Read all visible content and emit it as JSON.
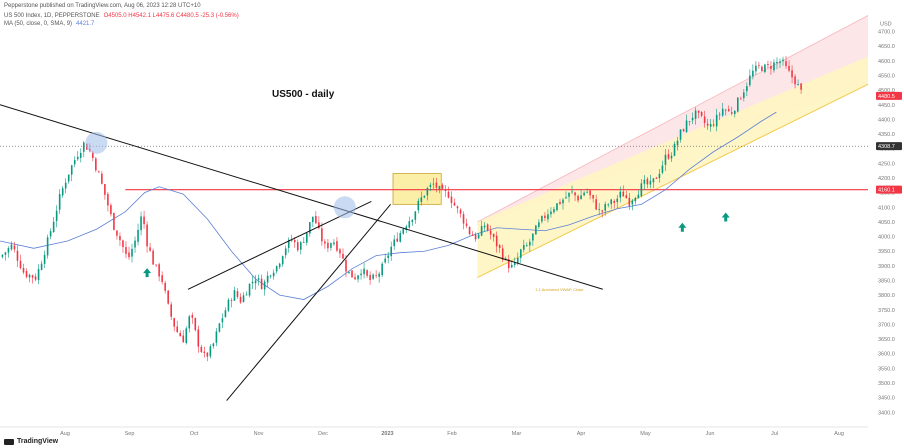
{
  "header": {
    "published": "Pepperstone published on TradingView.com, Aug 06, 2023 12:28 UTC+10",
    "symbol": "US 500 Index, 1D, PEPPERSTONE",
    "ohlc": "O4505.0 H4542.1 L4475.6 C4480.5 -25.3 (-0.56%)",
    "ma_label": "MA (50, close, 0, SMA, 9)",
    "ma_value": "4421.7"
  },
  "branding": {
    "logo_text": "TradingView"
  },
  "colors": {
    "up": "#089981",
    "down": "#f23645",
    "ma": "#5b7fd6",
    "resistance": "#f23645",
    "channel_upper_fill": "#fde0e2",
    "channel_lower_fill": "#fff5c2",
    "box_fill": "#fbefa8",
    "arrow": "#089981",
    "circle": "#9fbbe8",
    "dotted": "#555555"
  },
  "chart_data": {
    "type": "candlestick",
    "title": "US500 - daily",
    "y_unit": "USD",
    "ylim": [
      3360,
      4760
    ],
    "y_ticks": [
      3400,
      3450,
      3500,
      3550,
      3600,
      3650,
      3700,
      3750,
      3800,
      3850,
      3900,
      3950,
      4000,
      4050,
      4100,
      4150,
      4200,
      4250,
      4300,
      4350,
      4400,
      4450,
      4500,
      4550,
      4600,
      4650,
      4700
    ],
    "x_ticks": [
      "Aug",
      "Sep",
      "Oct",
      "Nov",
      "Dec",
      "2023",
      "Feb",
      "Mar",
      "Apr",
      "May",
      "Jun",
      "Jul",
      "Aug"
    ],
    "price_labels": [
      {
        "text": "USD",
        "value": 4728
      },
      {
        "text": "4480.5",
        "value": 4480.5,
        "color": "#f23645"
      },
      {
        "text": "4308.7",
        "value": 4308.7,
        "color": "#333333"
      },
      {
        "text": "4160.1",
        "value": 4160.1,
        "color": "#f23645"
      }
    ],
    "annotation_text": "1.1 Anchored VWAP, Close",
    "horizontal_levels": {
      "resistance": 4160.1,
      "dotted_high": 4308.7
    },
    "ma_series": [
      {
        "d": 0,
        "v": 3985
      },
      {
        "d": 14,
        "v": 3960
      },
      {
        "d": 28,
        "v": 3985
      },
      {
        "d": 40,
        "v": 4025
      },
      {
        "d": 52,
        "v": 4085
      },
      {
        "d": 60,
        "v": 4150
      },
      {
        "d": 66,
        "v": 4170
      },
      {
        "d": 76,
        "v": 4145
      },
      {
        "d": 86,
        "v": 4060
      },
      {
        "d": 96,
        "v": 3950
      },
      {
        "d": 106,
        "v": 3855
      },
      {
        "d": 116,
        "v": 3800
      },
      {
        "d": 126,
        "v": 3785
      },
      {
        "d": 136,
        "v": 3830
      },
      {
        "d": 146,
        "v": 3890
      },
      {
        "d": 156,
        "v": 3935
      },
      {
        "d": 166,
        "v": 3945
      },
      {
        "d": 176,
        "v": 3950
      },
      {
        "d": 186,
        "v": 3970
      },
      {
        "d": 196,
        "v": 4005
      },
      {
        "d": 206,
        "v": 4030
      },
      {
        "d": 216,
        "v": 4025
      },
      {
        "d": 226,
        "v": 4020
      },
      {
        "d": 236,
        "v": 4040
      },
      {
        "d": 246,
        "v": 4070
      },
      {
        "d": 256,
        "v": 4095
      },
      {
        "d": 266,
        "v": 4110
      },
      {
        "d": 276,
        "v": 4160
      },
      {
        "d": 286,
        "v": 4230
      },
      {
        "d": 296,
        "v": 4290
      },
      {
        "d": 306,
        "v": 4340
      },
      {
        "d": 316,
        "v": 4395
      },
      {
        "d": 322,
        "v": 4425
      }
    ],
    "close_path": [
      {
        "d": 0,
        "c": 3930
      },
      {
        "d": 5,
        "c": 3970
      },
      {
        "d": 10,
        "c": 3875
      },
      {
        "d": 15,
        "c": 3860
      },
      {
        "d": 20,
        "c": 3990
      },
      {
        "d": 25,
        "c": 4140
      },
      {
        "d": 28,
        "c": 4210
      },
      {
        "d": 32,
        "c": 4280
      },
      {
        "d": 35,
        "c": 4320
      },
      {
        "d": 38,
        "c": 4280
      },
      {
        "d": 41,
        "c": 4210
      },
      {
        "d": 44,
        "c": 4130
      },
      {
        "d": 47,
        "c": 4040
      },
      {
        "d": 50,
        "c": 3985
      },
      {
        "d": 53,
        "c": 3920
      },
      {
        "d": 56,
        "c": 3985
      },
      {
        "d": 59,
        "c": 4080
      },
      {
        "d": 61,
        "c": 3980
      },
      {
        "d": 64,
        "c": 3900
      },
      {
        "d": 67,
        "c": 3860
      },
      {
        "d": 70,
        "c": 3750
      },
      {
        "d": 73,
        "c": 3680
      },
      {
        "d": 76,
        "c": 3650
      },
      {
        "d": 79,
        "c": 3735
      },
      {
        "d": 82,
        "c": 3640
      },
      {
        "d": 85,
        "c": 3585
      },
      {
        "d": 88,
        "c": 3620
      },
      {
        "d": 91,
        "c": 3700
      },
      {
        "d": 94,
        "c": 3760
      },
      {
        "d": 97,
        "c": 3810
      },
      {
        "d": 100,
        "c": 3780
      },
      {
        "d": 103,
        "c": 3830
      },
      {
        "d": 106,
        "c": 3860
      },
      {
        "d": 109,
        "c": 3830
      },
      {
        "d": 112,
        "c": 3880
      },
      {
        "d": 115,
        "c": 3900
      },
      {
        "d": 118,
        "c": 3960
      },
      {
        "d": 121,
        "c": 3990
      },
      {
        "d": 124,
        "c": 3960
      },
      {
        "d": 127,
        "c": 4010
      },
      {
        "d": 130,
        "c": 4075
      },
      {
        "d": 132,
        "c": 4020
      },
      {
        "d": 135,
        "c": 3960
      },
      {
        "d": 138,
        "c": 3990
      },
      {
        "d": 141,
        "c": 3950
      },
      {
        "d": 144,
        "c": 3880
      },
      {
        "d": 147,
        "c": 3860
      },
      {
        "d": 150,
        "c": 3890
      },
      {
        "d": 153,
        "c": 3850
      },
      {
        "d": 156,
        "c": 3860
      },
      {
        "d": 159,
        "c": 3900
      },
      {
        "d": 162,
        "c": 3960
      },
      {
        "d": 165,
        "c": 4000
      },
      {
        "d": 168,
        "c": 4040
      },
      {
        "d": 171,
        "c": 4070
      },
      {
        "d": 174,
        "c": 4120
      },
      {
        "d": 177,
        "c": 4160
      },
      {
        "d": 180,
        "c": 4180
      },
      {
        "d": 183,
        "c": 4150
      },
      {
        "d": 186,
        "c": 4145
      },
      {
        "d": 189,
        "c": 4100
      },
      {
        "d": 192,
        "c": 4060
      },
      {
        "d": 195,
        "c": 4010
      },
      {
        "d": 198,
        "c": 3995
      },
      {
        "d": 201,
        "c": 4040
      },
      {
        "d": 204,
        "c": 4000
      },
      {
        "d": 207,
        "c": 3960
      },
      {
        "d": 210,
        "c": 3910
      },
      {
        "d": 213,
        "c": 3890
      },
      {
        "d": 216,
        "c": 3950
      },
      {
        "d": 219,
        "c": 3970
      },
      {
        "d": 222,
        "c": 4020
      },
      {
        "d": 225,
        "c": 4060
      },
      {
        "d": 228,
        "c": 4090
      },
      {
        "d": 231,
        "c": 4110
      },
      {
        "d": 234,
        "c": 4130
      },
      {
        "d": 237,
        "c": 4150
      },
      {
        "d": 240,
        "c": 4130
      },
      {
        "d": 243,
        "c": 4160
      },
      {
        "d": 246,
        "c": 4120
      },
      {
        "d": 249,
        "c": 4080
      },
      {
        "d": 252,
        "c": 4110
      },
      {
        "d": 255,
        "c": 4120
      },
      {
        "d": 258,
        "c": 4150
      },
      {
        "d": 261,
        "c": 4120
      },
      {
        "d": 264,
        "c": 4150
      },
      {
        "d": 267,
        "c": 4180
      },
      {
        "d": 270,
        "c": 4175
      },
      {
        "d": 273,
        "c": 4215
      },
      {
        "d": 276,
        "c": 4270
      },
      {
        "d": 279,
        "c": 4290
      },
      {
        "d": 282,
        "c": 4350
      },
      {
        "d": 285,
        "c": 4390
      },
      {
        "d": 288,
        "c": 4420
      },
      {
        "d": 291,
        "c": 4400
      },
      {
        "d": 294,
        "c": 4370
      },
      {
        "d": 297,
        "c": 4400
      },
      {
        "d": 300,
        "c": 4440
      },
      {
        "d": 303,
        "c": 4420
      },
      {
        "d": 306,
        "c": 4460
      },
      {
        "d": 309,
        "c": 4510
      },
      {
        "d": 312,
        "c": 4560
      },
      {
        "d": 315,
        "c": 4580
      },
      {
        "d": 318,
        "c": 4575
      },
      {
        "d": 321,
        "c": 4590
      },
      {
        "d": 324,
        "c": 4600
      },
      {
        "d": 327,
        "c": 4560
      },
      {
        "d": 330,
        "c": 4530
      },
      {
        "d": 333,
        "c": 4480
      }
    ],
    "x_domain": [
      0,
      360
    ]
  }
}
